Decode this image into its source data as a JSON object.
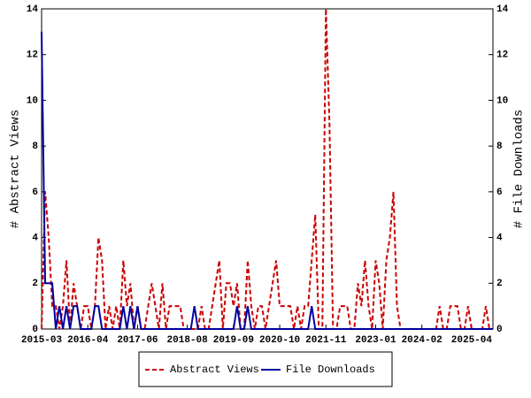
{
  "chart_data": {
    "type": "line",
    "y_label": "# Abstract Views",
    "y2_label": "# File Downloads",
    "x": [
      "2015-03",
      "2015-04",
      "2015-05",
      "2015-06",
      "2015-07",
      "2015-08",
      "2015-09",
      "2015-10",
      "2015-11",
      "2015-12",
      "2016-01",
      "2016-02",
      "2016-03",
      "2016-04",
      "2016-05",
      "2016-06",
      "2016-07",
      "2016-08",
      "2016-09",
      "2016-10",
      "2016-11",
      "2016-12",
      "2017-01",
      "2017-02",
      "2017-03",
      "2017-04",
      "2017-05",
      "2017-06",
      "2017-07",
      "2017-08",
      "2017-09",
      "2017-10",
      "2017-11",
      "2017-12",
      "2018-01",
      "2018-02",
      "2018-03",
      "2018-04",
      "2018-05",
      "2018-06",
      "2018-07",
      "2018-08",
      "2018-09",
      "2018-10",
      "2018-11",
      "2018-12",
      "2019-01",
      "2019-02",
      "2019-03",
      "2019-04",
      "2019-05",
      "2019-06",
      "2019-07",
      "2019-08",
      "2019-09",
      "2019-10",
      "2019-11",
      "2019-12",
      "2020-01",
      "2020-02",
      "2020-03",
      "2020-04",
      "2020-05",
      "2020-06",
      "2020-07",
      "2020-08",
      "2020-09",
      "2020-10",
      "2020-11",
      "2020-12",
      "2021-01",
      "2021-02",
      "2021-03",
      "2021-04",
      "2021-05",
      "2021-06",
      "2021-07",
      "2021-08",
      "2021-09",
      "2021-10",
      "2021-11",
      "2021-12",
      "2022-01",
      "2022-02",
      "2022-03",
      "2022-04",
      "2022-05",
      "2022-06",
      "2022-07",
      "2022-08",
      "2022-09",
      "2022-10",
      "2022-11",
      "2022-12",
      "2023-01",
      "2023-02",
      "2023-03",
      "2023-04",
      "2023-05",
      "2023-06",
      "2023-07",
      "2023-08",
      "2023-09",
      "2023-10",
      "2023-11",
      "2023-12",
      "2024-01",
      "2024-02",
      "2024-03",
      "2024-04",
      "2024-05",
      "2024-06",
      "2024-07",
      "2024-08",
      "2024-09",
      "2024-10",
      "2024-11",
      "2024-12",
      "2025-01",
      "2025-02",
      "2025-03",
      "2025-04",
      "2025-05",
      "2025-06",
      "2025-07",
      "2025-08",
      "2025-09",
      "2025-10"
    ],
    "series": [
      {
        "name": "Abstract Views",
        "color": "#cc0000",
        "dash": true,
        "values": [
          0,
          6,
          4,
          1,
          1,
          0,
          1,
          3,
          0,
          2,
          1,
          0,
          1,
          1,
          0,
          1,
          4,
          3,
          0,
          1,
          0,
          1,
          0,
          3,
          1,
          2,
          0,
          1,
          0,
          0,
          1,
          2,
          1,
          0,
          2,
          0,
          1,
          1,
          1,
          1,
          0,
          0,
          0,
          0,
          0,
          1,
          0,
          0,
          1,
          2,
          3,
          0,
          2,
          2,
          1,
          2,
          0,
          0,
          3,
          1,
          0,
          1,
          1,
          0,
          1,
          2,
          3,
          1,
          1,
          1,
          1,
          0,
          1,
          0,
          1,
          1,
          3,
          5,
          0,
          0,
          14,
          9,
          0,
          0,
          1,
          1,
          1,
          0,
          0,
          2,
          1,
          3,
          1,
          0,
          3,
          2,
          0,
          3,
          4,
          6,
          1,
          0,
          0,
          0,
          0,
          0,
          0,
          0,
          0,
          0,
          0,
          0,
          1,
          0,
          0,
          1,
          1,
          1,
          0,
          0,
          1,
          0,
          0,
          0,
          0,
          1,
          0,
          0
        ]
      },
      {
        "name": "File Downloads",
        "color": "#0000a0",
        "dash": false,
        "axis": "y2",
        "values": [
          13,
          2,
          2,
          2,
          0,
          1,
          0,
          1,
          0,
          1,
          1,
          0,
          0,
          0,
          0,
          1,
          1,
          0,
          0,
          0,
          0,
          0,
          0,
          1,
          0,
          1,
          0,
          1,
          0,
          0,
          0,
          0,
          0,
          0,
          0,
          0,
          0,
          0,
          0,
          0,
          0,
          0,
          0,
          1,
          0,
          0,
          0,
          0,
          0,
          0,
          0,
          0,
          0,
          0,
          0,
          1,
          0,
          0,
          1,
          0,
          0,
          0,
          0,
          0,
          0,
          0,
          0,
          0,
          0,
          0,
          0,
          0,
          0,
          0,
          0,
          0,
          1,
          0,
          0,
          0,
          0,
          0,
          0,
          0,
          0,
          0,
          0,
          0,
          0,
          0,
          0,
          0,
          0,
          0,
          0,
          0,
          0,
          0,
          0,
          0,
          0,
          0,
          0,
          0,
          0,
          0,
          0,
          0,
          0,
          0,
          0,
          0,
          0,
          0,
          0,
          0,
          0,
          0,
          0,
          0,
          0,
          0,
          0,
          0,
          0,
          0,
          0,
          0
        ]
      }
    ],
    "xticks": [
      "2015-03",
      "2016-04",
      "2017-06",
      "2018-08",
      "2019-09",
      "2020-10",
      "2021-11",
      "2023-01",
      "2024-02",
      "2025-04"
    ],
    "ylim": [
      0,
      14
    ],
    "yticks": [
      0,
      2,
      4,
      6,
      8,
      10,
      12,
      14
    ],
    "y2lim": [
      0,
      14
    ],
    "y2ticks": [
      0,
      2,
      4,
      6,
      8,
      10,
      12,
      14
    ]
  }
}
